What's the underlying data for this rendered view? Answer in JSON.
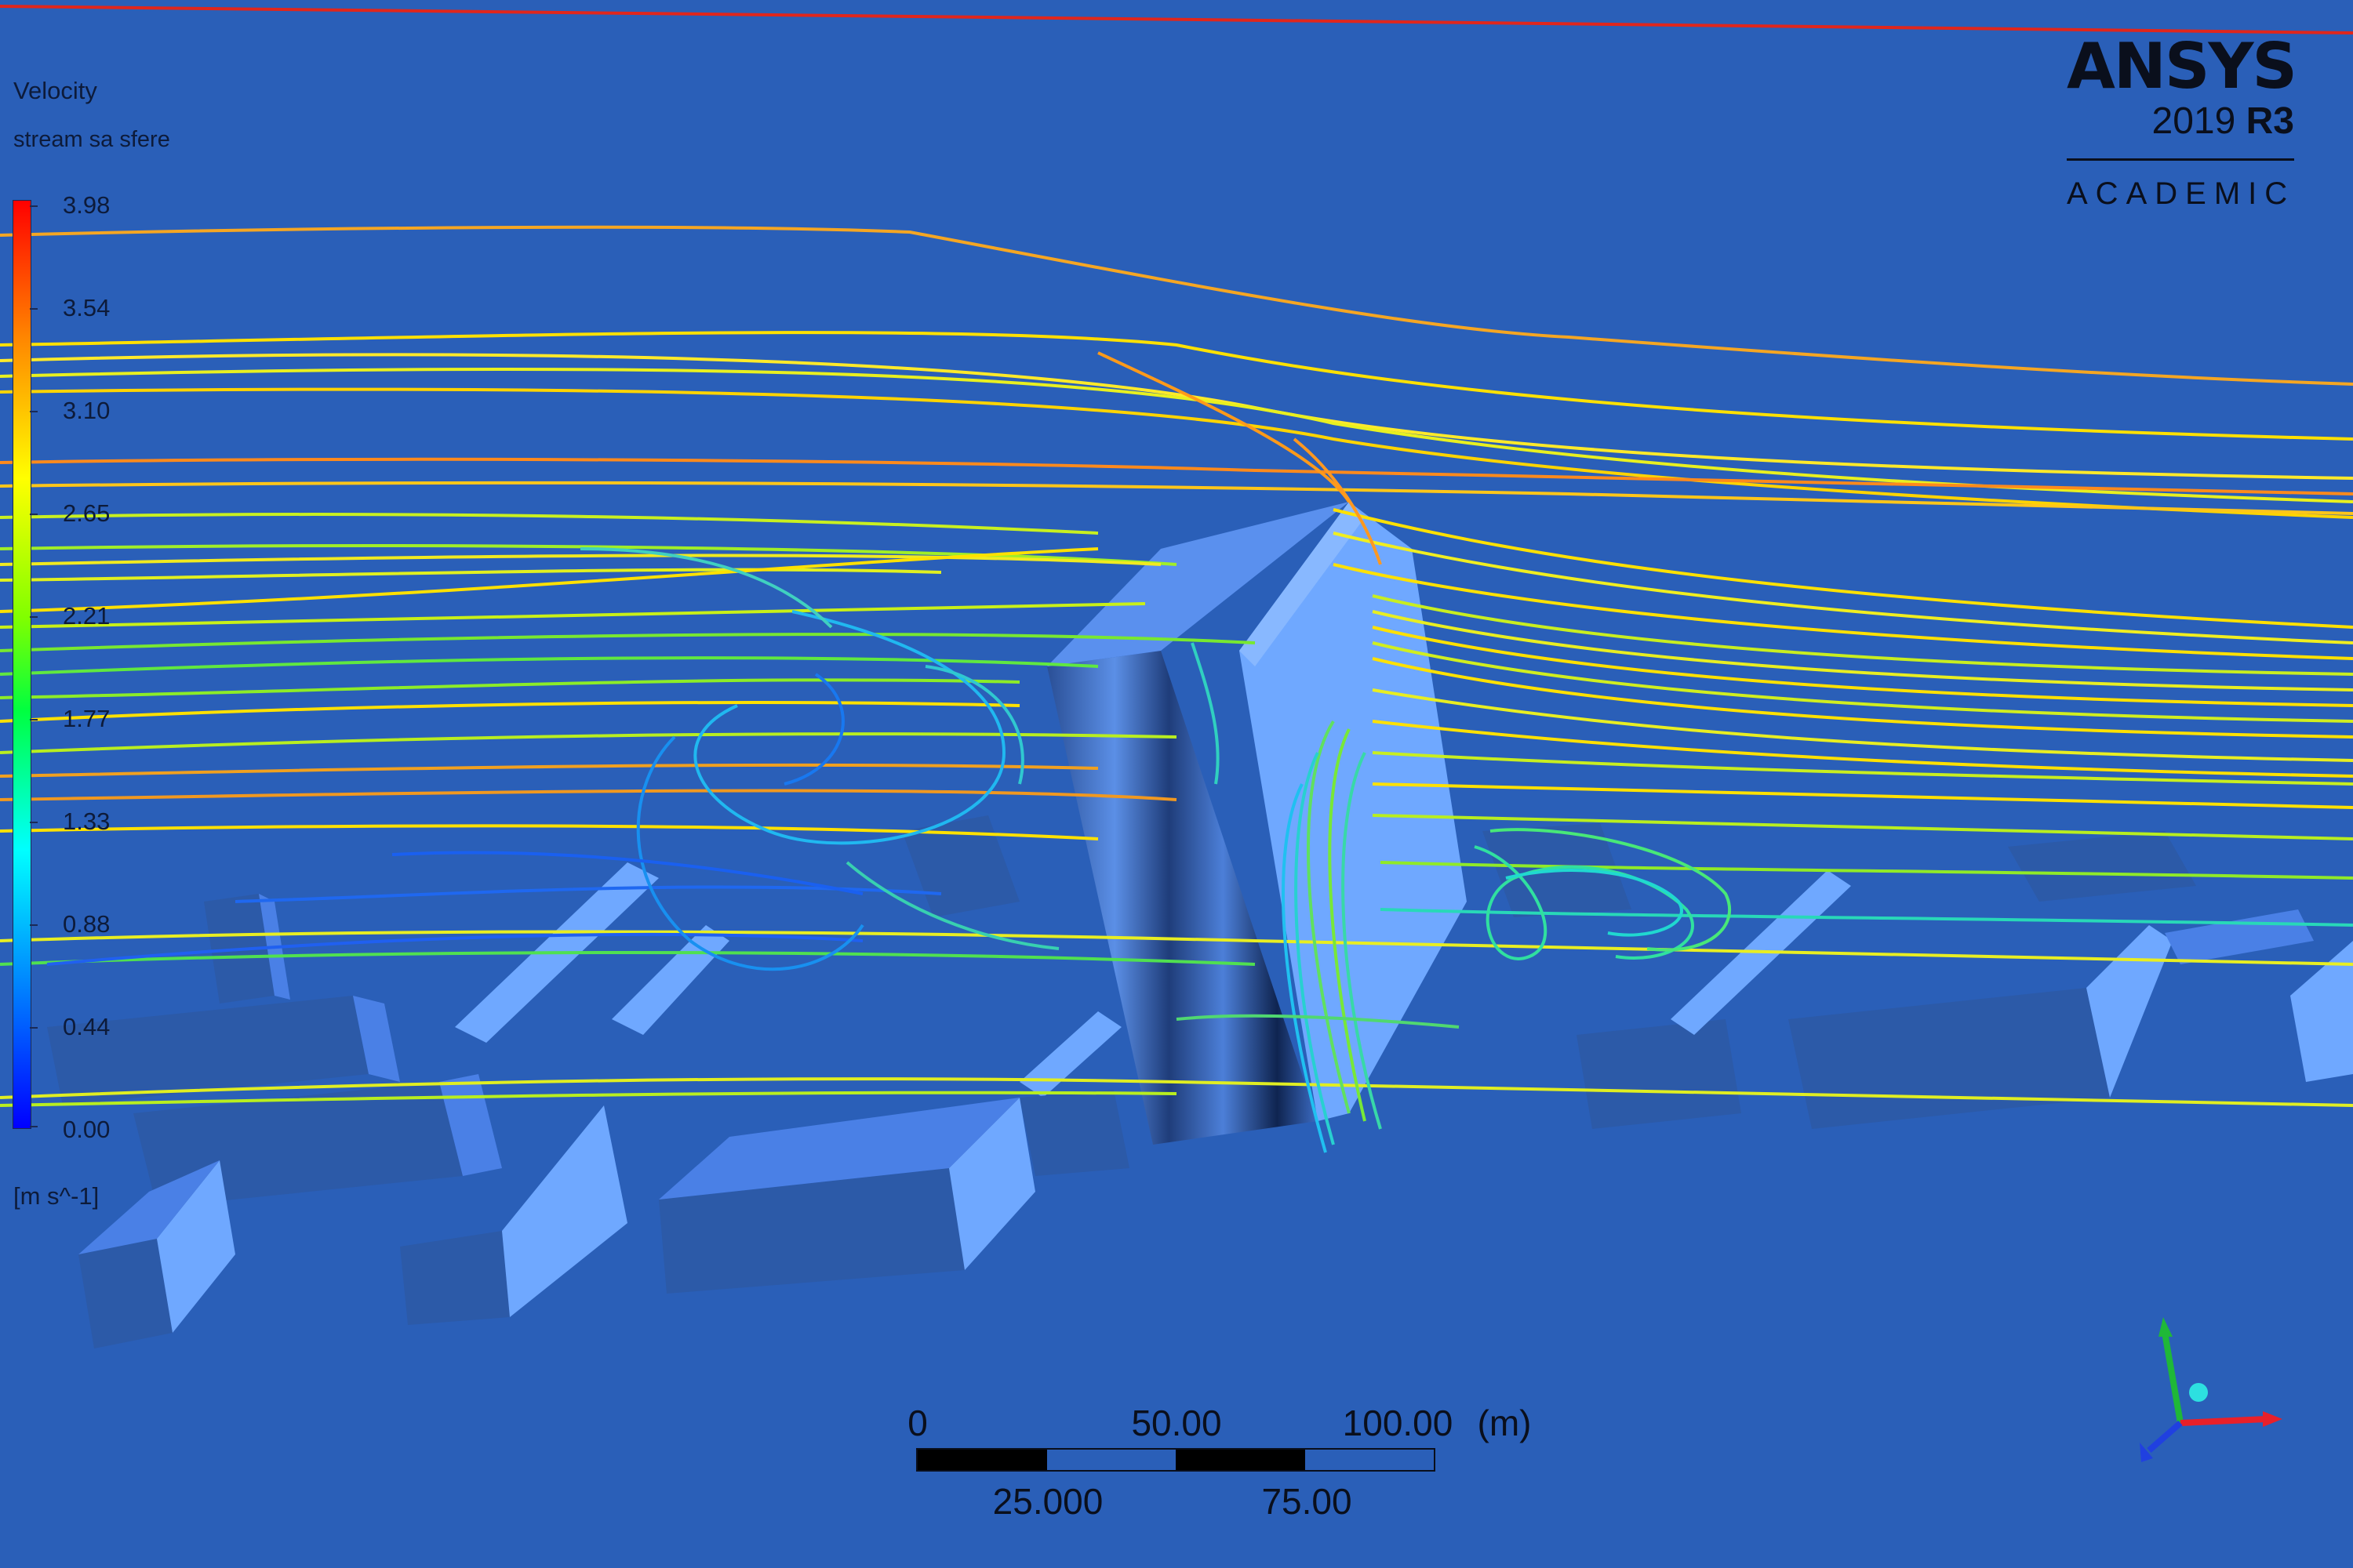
{
  "legend": {
    "variable": "Velocity",
    "object": "stream sa sfere",
    "ticks": [
      "3.98",
      "3.54",
      "3.10",
      "2.65",
      "2.21",
      "1.77",
      "1.33",
      "0.88",
      "0.44",
      "0.00"
    ],
    "unit": "[m s^-1]",
    "colormap": [
      "#ff0000",
      "#ff8800",
      "#ffff00",
      "#00ff00",
      "#00ffff",
      "#0088ff",
      "#0000ff"
    ]
  },
  "logo": {
    "brand": "ANSYS",
    "version": "2019",
    "release": "R3",
    "edition": "ACADEMIC"
  },
  "scale": {
    "top_labels": [
      "0",
      "50.00",
      "100.00",
      "(m)"
    ],
    "bottom_labels": [
      "25.000",
      "75.00"
    ]
  },
  "triad": {
    "x_color": "#e8202a",
    "y_color": "#1fb838",
    "z_color": "#2040e0",
    "x_icon": "x-axis-arrow-icon",
    "y_icon": "y-axis-arrow-icon",
    "z_icon": "z-axis-arrow-icon"
  },
  "colors": {
    "background": "#2a5fb8",
    "building_top": "#6fa8ff",
    "building_side": "#4a80e6",
    "building_front": "#2c5aa8"
  }
}
